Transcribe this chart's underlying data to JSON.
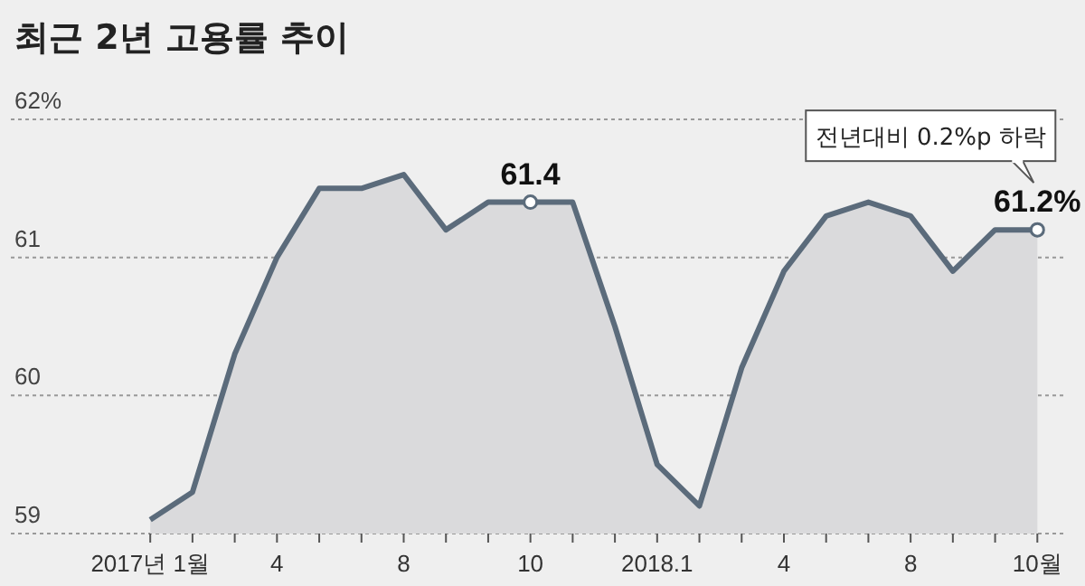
{
  "chart_data": {
    "type": "area",
    "title": "최근 2년 고용률 추이",
    "categories": [
      "2017년 1월",
      null,
      null,
      "4",
      null,
      null,
      "8",
      null,
      null,
      "10",
      null,
      null,
      "2018.1",
      null,
      null,
      "4",
      null,
      null,
      "8",
      null,
      null,
      "10월"
    ],
    "series": [
      {
        "color": "#5b6b7b",
        "values": [
          59.1,
          59.3,
          60.3,
          61.0,
          61.5,
          61.5,
          61.6,
          61.2,
          61.4,
          61.4,
          61.4,
          60.5,
          59.5,
          59.2,
          60.2,
          60.9,
          61.3,
          61.4,
          61.3,
          60.9,
          61.2,
          61.2
        ]
      }
    ],
    "ylim": [
      59,
      62
    ],
    "yticks": [
      59,
      60,
      61,
      {
        "value": 62,
        "label": "62%"
      }
    ],
    "grid": "y",
    "marker": "none",
    "line_style": "solid",
    "annotations": [
      {
        "text": "61.4",
        "x": "10",
        "y": 61.4
      },
      {
        "text": "61.2%",
        "x": "10월",
        "y": 61.2
      },
      "전년대비 0.2%p 하락"
    ]
  }
}
